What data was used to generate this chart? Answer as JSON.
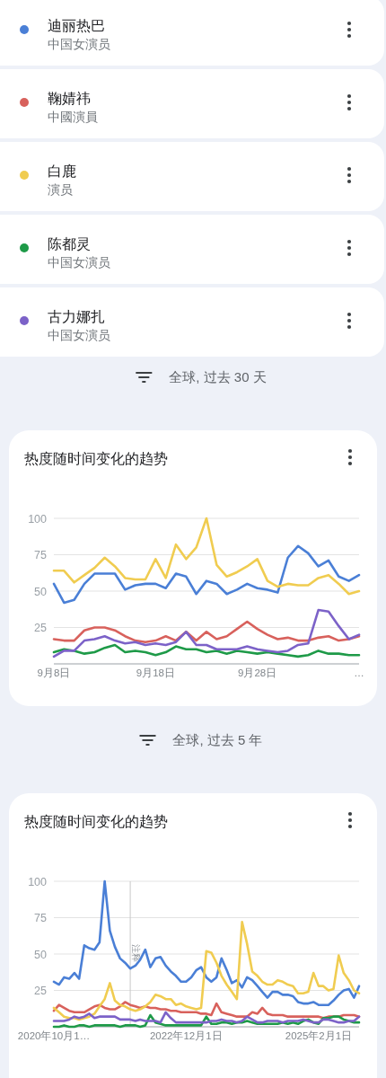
{
  "chart_data": [
    {
      "type": "line",
      "title": "热度随时间变化的趋势",
      "subtitle": "全球, 过去 30 天",
      "legend": "top",
      "grid": "y",
      "annotations": [
        "中国女演员",
        "中國演員",
        "演员",
        "中国女演员",
        "中国女演员"
      ],
      "x": [
        "--09-08",
        "--09-09",
        "--09-10",
        "--09-11",
        "--09-12",
        "--09-13",
        "--09-14",
        "--09-15",
        "--09-16",
        "--09-17",
        "--09-18",
        "--09-19",
        "--09-20",
        "--09-21",
        "--09-22",
        "--09-23",
        "--09-24",
        "--09-25",
        "--09-26",
        "--09-27",
        "--09-28",
        "--09-29",
        "--09-30",
        "--10-01",
        "--10-02",
        "--10-03",
        "--10-04",
        "--10-05",
        "--10-06",
        "--10-07",
        "--10-08"
      ],
      "xlim": [
        "--09-08",
        "--10-08"
      ],
      "xticks": [
        {
          "value": "--09-08",
          "label": "9月8日"
        },
        {
          "value": "--09-18",
          "label": "9月18日"
        },
        {
          "value": "--09-28",
          "label": "9月28日"
        },
        {
          "value": "--10-08",
          "label": "…"
        }
      ],
      "ylim": [
        0,
        100
      ],
      "yticks": [
        25,
        50,
        75,
        100
      ],
      "series": [
        {
          "name": "迪丽热巴",
          "color": "#4a7fd6",
          "values": [
            55,
            42,
            44,
            55,
            62,
            62,
            62,
            51,
            54,
            55,
            55,
            52,
            62,
            60,
            48,
            57,
            55,
            48,
            51,
            55,
            52,
            51,
            49,
            73,
            81,
            76,
            67,
            71,
            60,
            57,
            61
          ]
        },
        {
          "name": "鞠婧祎",
          "color": "#d8615c",
          "values": [
            17,
            16,
            16,
            23,
            25,
            25,
            23,
            19,
            16,
            15,
            16,
            19,
            16,
            22,
            16,
            22,
            17,
            19,
            24,
            29,
            24,
            20,
            17,
            18,
            16,
            16,
            18,
            19,
            16,
            17,
            19
          ]
        },
        {
          "name": "白鹿",
          "color": "#f0cc50",
          "values": [
            64,
            64,
            56,
            61,
            66,
            73,
            67,
            59,
            58,
            58,
            72,
            59,
            82,
            72,
            80,
            100,
            68,
            60,
            63,
            67,
            72,
            57,
            53,
            55,
            54,
            54,
            59,
            61,
            55,
            48,
            50
          ]
        },
        {
          "name": "陈都灵",
          "color": "#1e9a48",
          "values": [
            8,
            10,
            9,
            7,
            8,
            11,
            13,
            8,
            9,
            8,
            6,
            8,
            12,
            10,
            10,
            8,
            9,
            7,
            9,
            8,
            7,
            8,
            7,
            6,
            5,
            6,
            9,
            7,
            7,
            6,
            6
          ]
        },
        {
          "name": "古力娜扎",
          "color": "#7c62c8",
          "values": [
            5,
            9,
            9,
            16,
            17,
            19,
            16,
            14,
            15,
            13,
            14,
            13,
            15,
            22,
            13,
            13,
            10,
            10,
            10,
            12,
            10,
            9,
            8,
            9,
            13,
            14,
            37,
            36,
            26,
            17,
            20
          ]
        }
      ]
    },
    {
      "type": "line",
      "title": "热度随时间变化的趋势",
      "subtitle": "全球, 过去 5 年",
      "grid": "y",
      "x": [
        "2020-10-01",
        "2020-11-01",
        "2020-12-01",
        "2021-01-01",
        "2021-02-01",
        "2021-03-01",
        "2021-04-01",
        "2021-05-01",
        "2021-06-01",
        "2021-07-01",
        "2021-08-01",
        "2021-09-01",
        "2021-10-01",
        "2021-11-01",
        "2021-12-01",
        "2022-01-01",
        "2022-02-01",
        "2022-03-01",
        "2022-04-01",
        "2022-05-01",
        "2022-06-01",
        "2022-07-01",
        "2022-08-01",
        "2022-09-01",
        "2022-10-01",
        "2022-11-01",
        "2022-12-01",
        "2023-01-01",
        "2023-02-01",
        "2023-03-01",
        "2023-04-01",
        "2023-05-01",
        "2023-06-01",
        "2023-07-01",
        "2023-08-01",
        "2023-09-01",
        "2023-10-01",
        "2023-11-01",
        "2023-12-01",
        "2024-01-01",
        "2024-02-01",
        "2024-03-01",
        "2024-04-01",
        "2024-05-01",
        "2024-06-01",
        "2024-07-01",
        "2024-08-01",
        "2024-09-01",
        "2024-10-01",
        "2024-11-01",
        "2024-12-01",
        "2025-01-01",
        "2025-02-01",
        "2025-03-01",
        "2025-04-01",
        "2025-05-01",
        "2025-06-01",
        "2025-07-01",
        "2025-08-01",
        "2025-09-01",
        "2025-10-01"
      ],
      "xlim": [
        "2020-10-01",
        "2025-10-01"
      ],
      "xticks": [
        {
          "value": "2020-10-01",
          "label": "2020年10月1…"
        },
        {
          "value": "2022-12-01",
          "label": "2022年12月1日"
        },
        {
          "value": "2025-02-01",
          "label": "2025年2月1日"
        }
      ],
      "ylim": [
        0,
        100
      ],
      "yticks": [
        25,
        50,
        75,
        100
      ],
      "ref_lines": [
        {
          "axis": "x",
          "value": "2022-01-01",
          "label": "注释"
        }
      ],
      "series": [
        {
          "color": "#4a7fd6",
          "values": [
            31,
            29,
            34,
            33,
            37,
            33,
            56,
            54,
            53,
            58,
            100,
            66,
            55,
            47,
            44,
            40,
            42,
            46,
            53,
            41,
            47,
            48,
            42,
            38,
            35,
            31,
            31,
            34,
            39,
            41,
            34,
            31,
            34,
            47,
            39,
            30,
            32,
            27,
            34,
            32,
            28,
            24,
            20,
            24,
            24,
            22,
            22,
            21,
            17,
            16,
            16,
            17,
            15,
            15,
            15,
            18,
            22,
            25,
            26,
            20,
            28
          ]
        },
        {
          "color": "#d8615c",
          "values": [
            11,
            15,
            13,
            11,
            10,
            10,
            10,
            12,
            14,
            15,
            13,
            12,
            12,
            14,
            17,
            15,
            14,
            13,
            14,
            13,
            13,
            12,
            12,
            11,
            11,
            10,
            10,
            10,
            10,
            9,
            9,
            8,
            16,
            10,
            9,
            8,
            7,
            7,
            7,
            10,
            9,
            13,
            9,
            8,
            8,
            8,
            7,
            7,
            7,
            7,
            7,
            7,
            7,
            6,
            7,
            7,
            7,
            8,
            8,
            8,
            7
          ]
        },
        {
          "color": "#f0cc50",
          "values": [
            13,
            10,
            7,
            6,
            6,
            5,
            6,
            7,
            9,
            14,
            19,
            30,
            18,
            15,
            14,
            12,
            11,
            12,
            14,
            17,
            22,
            21,
            19,
            19,
            15,
            16,
            14,
            13,
            12,
            13,
            52,
            51,
            44,
            35,
            29,
            24,
            19,
            72,
            57,
            38,
            35,
            31,
            29,
            29,
            32,
            31,
            29,
            28,
            23,
            23,
            24,
            37,
            28,
            28,
            25,
            26,
            49,
            37,
            32,
            25,
            23
          ]
        },
        {
          "color": "#1e9a48",
          "values": [
            0,
            0,
            1,
            0,
            0,
            1,
            1,
            0,
            1,
            1,
            1,
            1,
            1,
            0,
            1,
            1,
            1,
            0,
            1,
            8,
            3,
            2,
            1,
            1,
            1,
            1,
            1,
            1,
            1,
            1,
            7,
            2,
            2,
            3,
            3,
            2,
            3,
            3,
            4,
            3,
            2,
            2,
            2,
            2,
            2,
            3,
            2,
            3,
            2,
            4,
            5,
            3,
            2,
            6,
            6,
            7,
            7,
            5,
            4,
            3,
            3
          ]
        },
        {
          "color": "#7c62c8",
          "values": [
            4,
            4,
            4,
            5,
            7,
            6,
            7,
            9,
            6,
            7,
            7,
            7,
            7,
            5,
            5,
            5,
            4,
            5,
            4,
            4,
            4,
            3,
            10,
            6,
            3,
            3,
            3,
            3,
            3,
            3,
            3,
            4,
            4,
            5,
            4,
            4,
            3,
            4,
            7,
            5,
            3,
            3,
            4,
            4,
            4,
            3,
            4,
            4,
            4,
            5,
            4,
            3,
            3,
            5,
            5,
            4,
            3,
            3,
            4,
            4,
            7
          ]
        }
      ]
    }
  ]
}
